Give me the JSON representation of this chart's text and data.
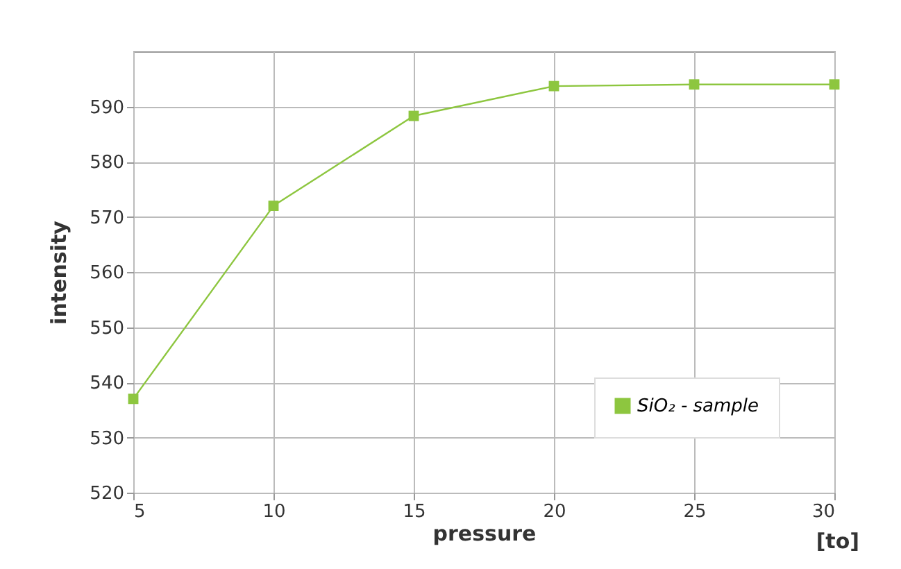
{
  "chart_data": {
    "type": "line",
    "xlabel": "pressure",
    "ylabel": "intensity",
    "annotations": [
      "[to]"
    ],
    "x": [
      5,
      10,
      15,
      20,
      25,
      30
    ],
    "series": [
      {
        "name": "SiO₂ - sample",
        "color": "#8dc63f",
        "values": [
          537,
          572,
          588.3,
          593.7,
          594,
          594
        ]
      }
    ],
    "xlim": [
      5,
      30
    ],
    "xticks": [
      5,
      10,
      15,
      20,
      25,
      30
    ],
    "ylim": [
      520,
      600
    ],
    "yticks": [
      520,
      530,
      540,
      550,
      560,
      570,
      580,
      590
    ],
    "grid": true,
    "legend": "bottom right",
    "marker": "square",
    "line_style": "solid"
  }
}
